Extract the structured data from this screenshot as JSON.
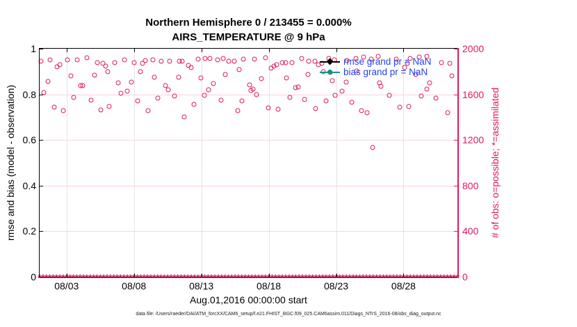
{
  "title": {
    "line1": "Northern Hemisphere 0 / 213455 = 0.000%",
    "line2": "AIRS_TEMPERATURE @ 9 hPa"
  },
  "axes": {
    "left": {
      "label": "rmse and bias (model - observation)",
      "ticks": [
        "0",
        "0.2",
        "0.4",
        "0.6",
        "0.8",
        "1"
      ],
      "range": [
        0,
        1
      ]
    },
    "right": {
      "label": "# of obs: o=possible; *=assimilated",
      "ticks": [
        "0",
        "400",
        "800",
        "1200",
        "1600",
        "2000"
      ],
      "range": [
        0,
        2000
      ]
    },
    "x": {
      "ticks": [
        "08/03",
        "08/08",
        "08/13",
        "08/18",
        "08/23",
        "08/28"
      ],
      "tick_days": [
        2,
        7,
        12,
        17,
        22,
        27
      ],
      "label": "Aug.01,2016 00:00:00 start",
      "range_days": [
        0,
        31
      ]
    }
  },
  "legend": [
    {
      "label": "rmse grand pr = NaN",
      "color": "#000000",
      "marker": "diamond"
    },
    {
      "label": "bias grand pr = NaN",
      "color": "#0f9688",
      "marker": "circle"
    }
  ],
  "footer": "data file: /Users/raeder/DAI/ATM_forcXX/CAM6_setup/f.e21.FHIST_BGC.f09_025.CAM6assim.011/Diags_NTrS_2016-08/obs_diag_output.nc",
  "colors": {
    "obs_pink": "#df1959",
    "bias_teal": "#0f9688",
    "legend_text_blue": "#2244ee",
    "grid_vertical": "#e4e4e4",
    "grid_horizontal": "#f8d2dd"
  },
  "chart_data": {
    "type": "scatter",
    "title": "Northern Hemisphere 0 / 213455 = 0.000% — AIRS_TEMPERATURE @ 9 hPa",
    "xlabel": "Aug.01,2016 00:00:00 start",
    "x_unit": "days since Aug 01 2016 00:00",
    "xlim_days": [
      0,
      31
    ],
    "ylim_left": [
      0,
      1
    ],
    "ylim_right": [
      0,
      2000
    ],
    "grid": true,
    "legend_position": "top-right-inside",
    "series": [
      {
        "name": "# of obs possible",
        "marker": "o",
        "axis": "right",
        "color": "#df1959",
        "points": [
          [
            0.09,
            1890
          ],
          [
            0.29,
            1615
          ],
          [
            0.6,
            1715
          ],
          [
            0.78,
            1900
          ],
          [
            1.09,
            1490
          ],
          [
            1.3,
            1840
          ],
          [
            1.5,
            1860
          ],
          [
            1.73,
            1460
          ],
          [
            2.04,
            1900
          ],
          [
            2.33,
            1760
          ],
          [
            2.54,
            1575
          ],
          [
            2.81,
            1900
          ],
          [
            3.02,
            1675
          ],
          [
            3.22,
            1675
          ],
          [
            3.53,
            1920
          ],
          [
            3.84,
            1550
          ],
          [
            4.05,
            1770
          ],
          [
            4.3,
            1880
          ],
          [
            4.53,
            1465
          ],
          [
            4.71,
            1870
          ],
          [
            4.91,
            1850
          ],
          [
            5.05,
            1800
          ],
          [
            5.17,
            1495
          ],
          [
            5.55,
            1880
          ],
          [
            5.82,
            1700
          ],
          [
            6.06,
            1610
          ],
          [
            6.29,
            1900
          ],
          [
            6.51,
            1630
          ],
          [
            6.8,
            1710
          ],
          [
            7.03,
            1880
          ],
          [
            7.27,
            1540
          ],
          [
            7.5,
            1800
          ],
          [
            7.62,
            1870
          ],
          [
            7.84,
            1895
          ],
          [
            8.06,
            1460
          ],
          [
            8.4,
            1900
          ],
          [
            8.53,
            1750
          ],
          [
            8.79,
            1565
          ],
          [
            9.04,
            1890
          ],
          [
            9.33,
            1675
          ],
          [
            9.52,
            1640
          ],
          [
            9.64,
            1890
          ],
          [
            10.03,
            1585
          ],
          [
            10.3,
            1750
          ],
          [
            10.37,
            1890
          ],
          [
            10.59,
            1890
          ],
          [
            10.71,
            1405
          ],
          [
            11.02,
            1855
          ],
          [
            11.25,
            1835
          ],
          [
            11.45,
            1510
          ],
          [
            11.75,
            1910
          ],
          [
            11.97,
            1745
          ],
          [
            12.2,
            1590
          ],
          [
            12.28,
            1915
          ],
          [
            12.54,
            1640
          ],
          [
            12.66,
            1915
          ],
          [
            12.88,
            1695
          ],
          [
            13.18,
            1905
          ],
          [
            13.47,
            1550
          ],
          [
            13.64,
            1915
          ],
          [
            13.75,
            1775
          ],
          [
            14.04,
            1890
          ],
          [
            14.43,
            1890
          ],
          [
            14.68,
            1455
          ],
          [
            14.81,
            1815
          ],
          [
            15.02,
            1540
          ],
          [
            15.12,
            1910
          ],
          [
            15.59,
            1685
          ],
          [
            15.7,
            1635
          ],
          [
            15.81,
            1645
          ],
          [
            15.93,
            1910
          ],
          [
            16.1,
            1600
          ],
          [
            16.45,
            1740
          ],
          [
            16.74,
            1920
          ],
          [
            16.96,
            1480
          ],
          [
            17.19,
            1830
          ],
          [
            17.36,
            1850
          ],
          [
            17.6,
            1860
          ],
          [
            17.7,
            1470
          ],
          [
            18.0,
            1880
          ],
          [
            18.26,
            1880
          ],
          [
            18.33,
            1745
          ],
          [
            18.57,
            1575
          ],
          [
            18.74,
            1880
          ],
          [
            18.98,
            1660
          ],
          [
            19.2,
            1665
          ],
          [
            19.43,
            1915
          ],
          [
            19.67,
            1555
          ],
          [
            19.89,
            1775
          ],
          [
            19.95,
            1890
          ],
          [
            20.41,
            1890
          ],
          [
            20.46,
            1475
          ],
          [
            20.7,
            1860
          ],
          [
            20.93,
            1870
          ],
          [
            21.05,
            1800
          ],
          [
            21.27,
            1540
          ],
          [
            21.44,
            1915
          ],
          [
            21.55,
            1790
          ],
          [
            21.7,
            1720
          ],
          [
            21.85,
            1900
          ],
          [
            21.91,
            1590
          ],
          [
            22.42,
            1630
          ],
          [
            22.76,
            1710
          ],
          [
            22.82,
            1895
          ],
          [
            23.16,
            1530
          ],
          [
            23.46,
            1915
          ],
          [
            23.51,
            1805
          ],
          [
            23.9,
            1455
          ],
          [
            24.02,
            1925
          ],
          [
            24.28,
            1440
          ],
          [
            24.59,
            1910
          ],
          [
            24.71,
            1135
          ],
          [
            25.11,
            1935
          ],
          [
            25.23,
            1700
          ],
          [
            25.35,
            1670
          ],
          [
            25.92,
            1590
          ],
          [
            26.48,
            1910
          ],
          [
            26.72,
            1490
          ],
          [
            27.07,
            1835
          ],
          [
            27.29,
            1870
          ],
          [
            27.41,
            1495
          ],
          [
            27.51,
            1915
          ],
          [
            27.93,
            1775
          ],
          [
            28.15,
            1925
          ],
          [
            28.3,
            1585
          ],
          [
            28.72,
            1935
          ],
          [
            28.75,
            1645
          ],
          [
            28.95,
            1700
          ],
          [
            29.41,
            1565
          ],
          [
            29.82,
            1880
          ],
          [
            30.27,
            1440
          ],
          [
            30.44,
            1870
          ],
          [
            30.61,
            1760
          ]
        ]
      },
      {
        "name": "# of obs assimilated",
        "marker": "*",
        "axis": "right",
        "color": "#df1959",
        "constant_value": 0,
        "bins": 125,
        "note": "all bins equal 0"
      }
    ]
  }
}
